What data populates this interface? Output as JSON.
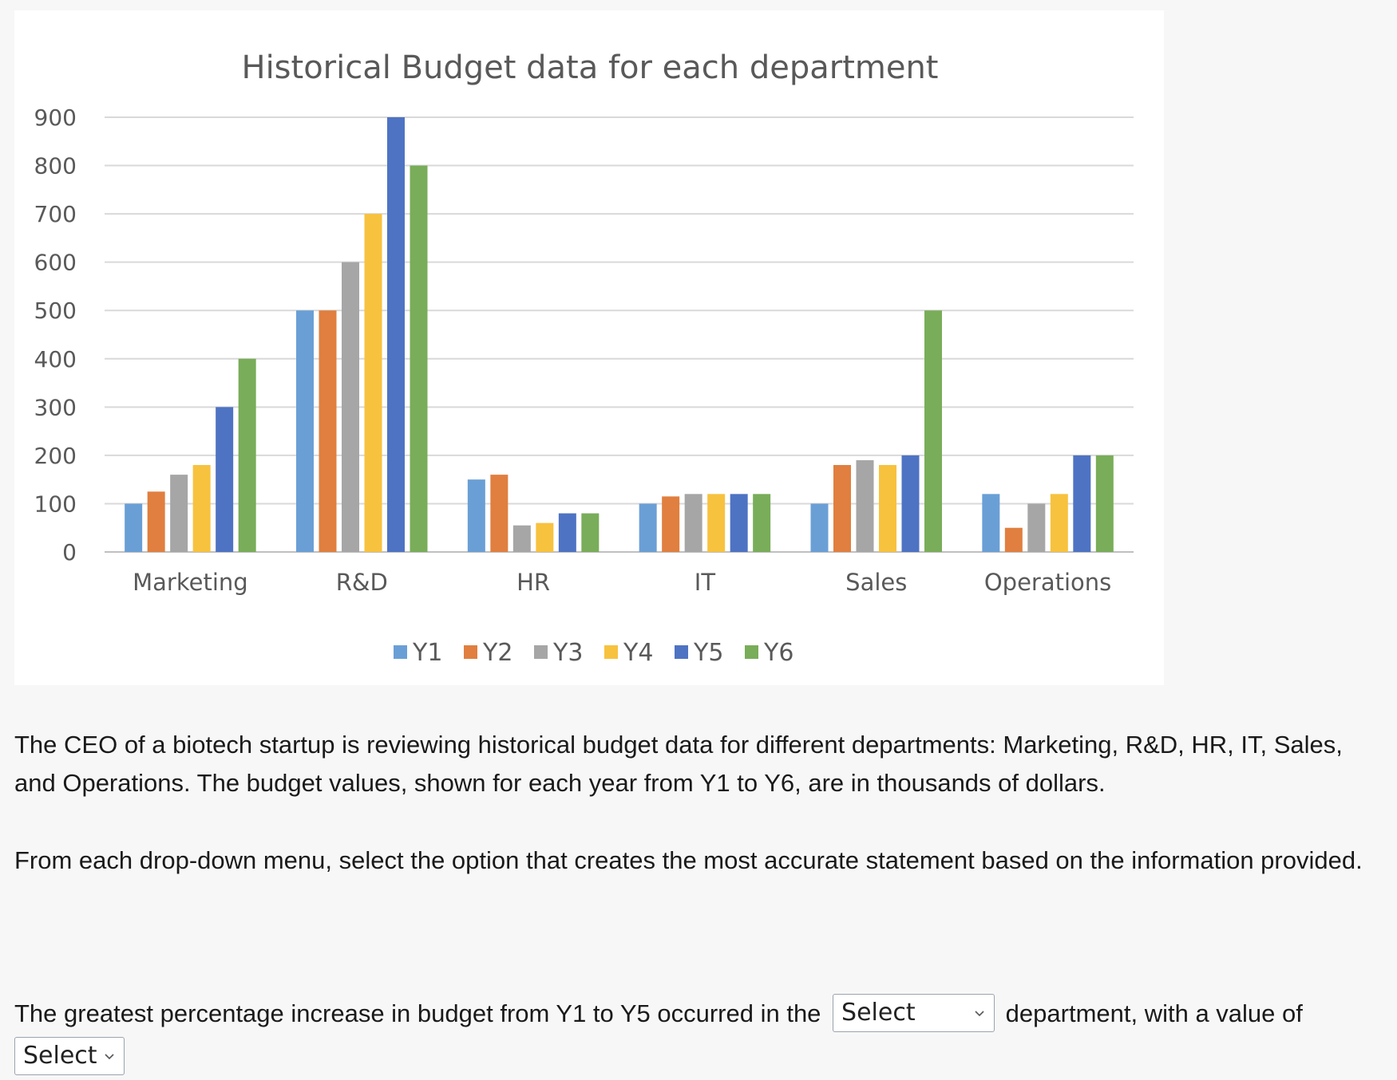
{
  "chart_data": {
    "type": "bar",
    "title": "Historical Budget data for each department",
    "categories": [
      "Marketing",
      "R&D",
      "HR",
      "IT",
      "Sales",
      "Operations"
    ],
    "series": [
      {
        "name": "Y1",
        "color": "#6a9fd6",
        "values": [
          100,
          500,
          150,
          100,
          100,
          120
        ]
      },
      {
        "name": "Y2",
        "color": "#e07f3f",
        "values": [
          125,
          500,
          160,
          115,
          180,
          50
        ]
      },
      {
        "name": "Y3",
        "color": "#a6a6a6",
        "values": [
          160,
          600,
          55,
          120,
          190,
          100
        ]
      },
      {
        "name": "Y4",
        "color": "#f7c23e",
        "values": [
          180,
          700,
          60,
          120,
          180,
          120
        ]
      },
      {
        "name": "Y5",
        "color": "#4e73c3",
        "values": [
          300,
          900,
          80,
          120,
          200,
          200
        ]
      },
      {
        "name": "Y6",
        "color": "#79ad59",
        "values": [
          400,
          800,
          80,
          120,
          500,
          200
        ]
      }
    ],
    "yticks": [
      0,
      100,
      200,
      300,
      400,
      500,
      600,
      700,
      800,
      900
    ],
    "ylim": [
      0,
      900
    ],
    "grid": true,
    "legend": "bottom"
  },
  "text": {
    "paragraph1": "The CEO of a biotech startup is reviewing historical budget data for different departments: Marketing, R&D, HR, IT, Sales, and Operations. The budget values, shown for each year from Y1 to Y6, are in thousands of dollars.",
    "paragraph2": "From each drop-down menu, select the option that creates the most accurate statement based on the information provided.",
    "question_before": "The greatest percentage increase in budget from Y1 to Y5 occurred in the",
    "question_middle": "department, with a value of"
  },
  "dropdowns": {
    "department": {
      "selected": "Select"
    },
    "value": {
      "selected": "Select"
    }
  },
  "icons": {
    "dropdown_icon": "chevron-down-icon"
  }
}
